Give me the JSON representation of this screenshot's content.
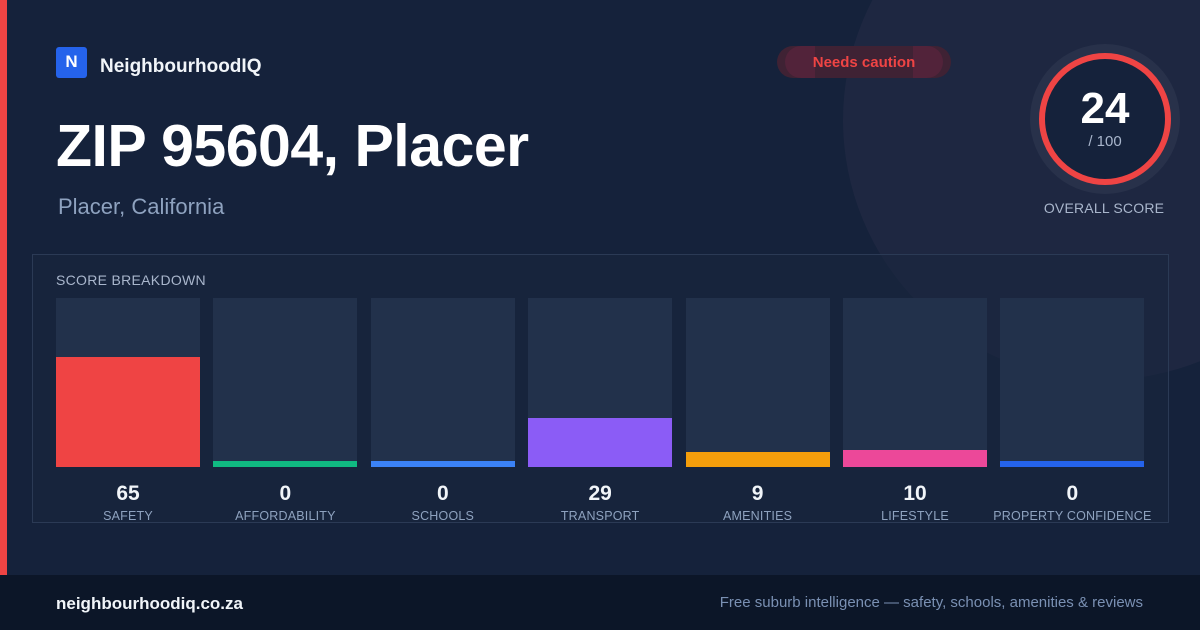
{
  "brand": {
    "logo_letter": "N",
    "name": "NeighbourhoodIQ"
  },
  "badge": {
    "label": "Needs caution"
  },
  "header": {
    "title": "ZIP 95604, Placer",
    "subtitle": "Placer, California"
  },
  "overall": {
    "value": "24",
    "max": "/ 100",
    "caption": "OVERALL SCORE",
    "color": "#ef4444"
  },
  "breakdown": {
    "title": "SCORE BREAKDOWN",
    "items": [
      {
        "label": "SAFETY",
        "value": "65",
        "color": "#ef4444"
      },
      {
        "label": "AFFORDABILITY",
        "value": "0",
        "color": "#10b981"
      },
      {
        "label": "SCHOOLS",
        "value": "0",
        "color": "#3b82f6"
      },
      {
        "label": "TRANSPORT",
        "value": "29",
        "color": "#8b5cf6"
      },
      {
        "label": "AMENITIES",
        "value": "9",
        "color": "#f59e0b"
      },
      {
        "label": "LIFESTYLE",
        "value": "10",
        "color": "#ec4899"
      },
      {
        "label": "PROPERTY CONFIDENCE",
        "value": "0",
        "color": "#2563eb"
      }
    ]
  },
  "footer": {
    "domain": "neighbourhoodiq.co.za",
    "tagline": "Free suburb intelligence — safety, schools, amenities & reviews"
  }
}
